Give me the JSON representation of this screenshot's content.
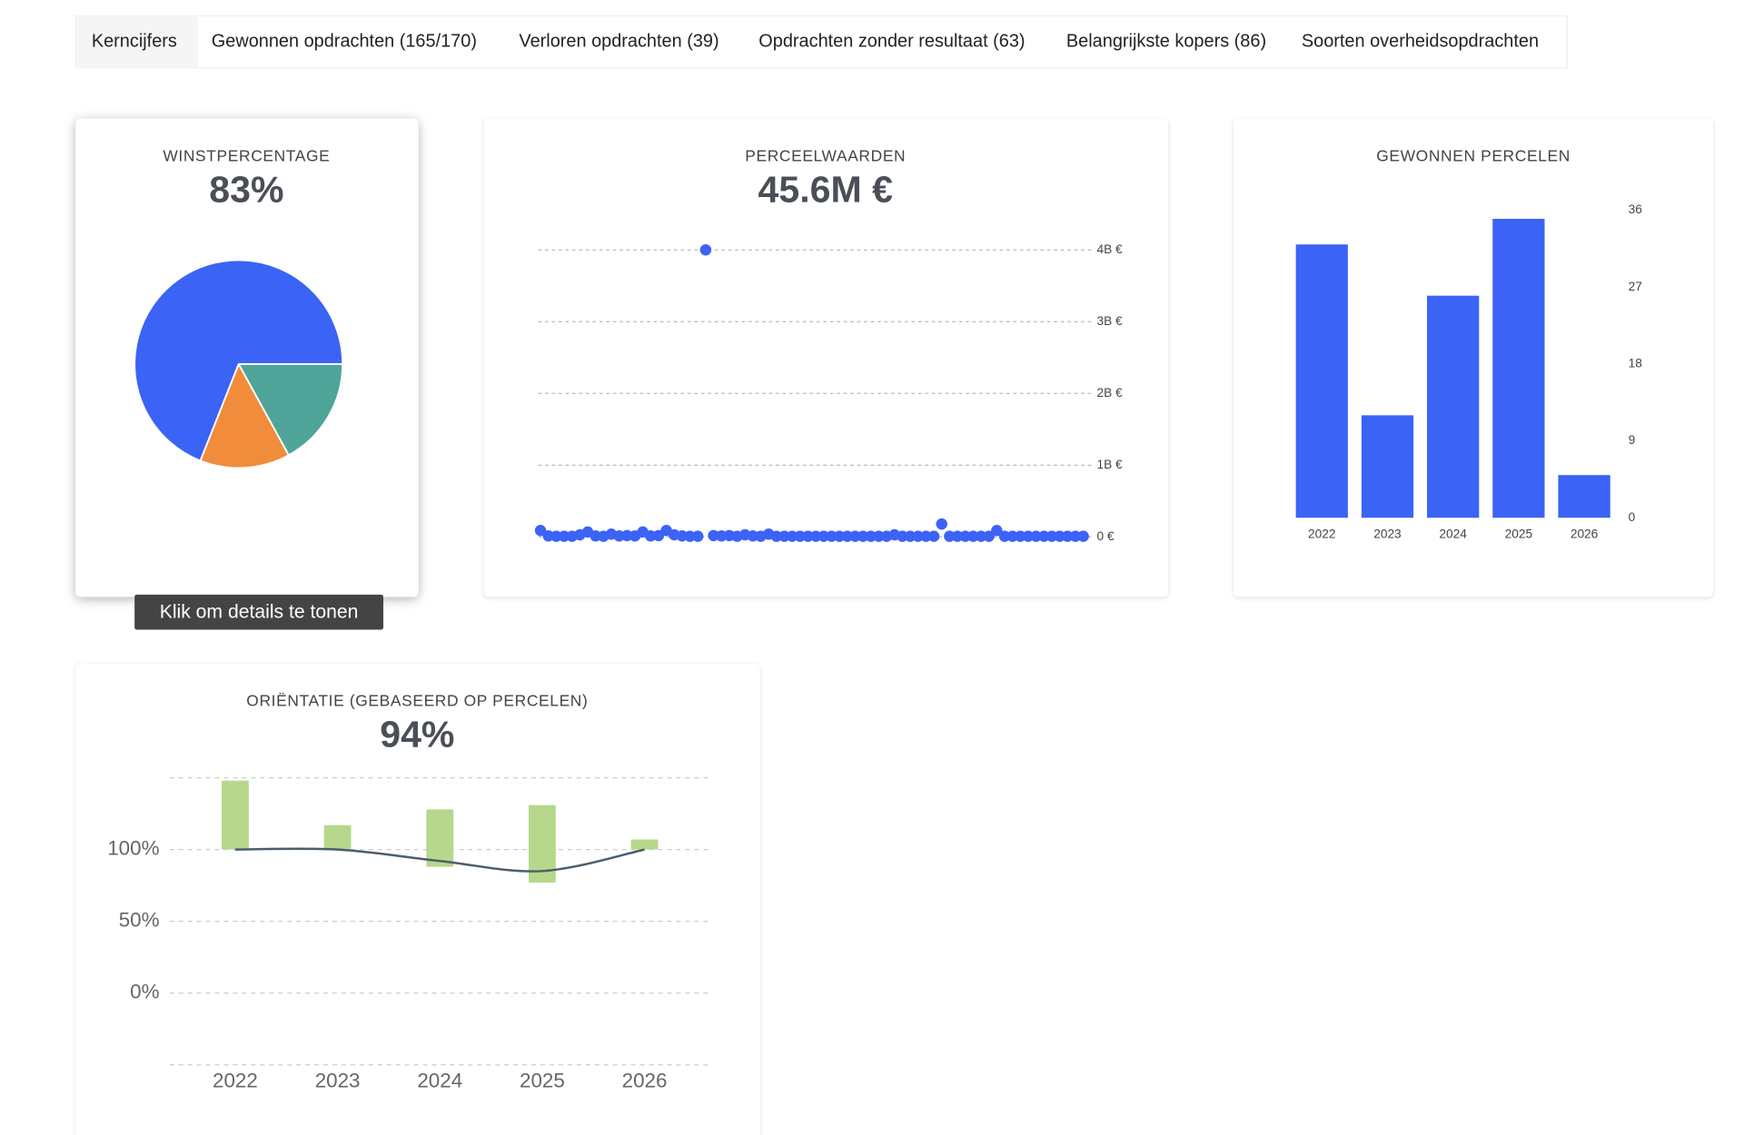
{
  "tabs": [
    "Kerncijfers",
    "Gewonnen opdrachten (165/170)",
    "Verloren opdrachten (39)",
    "Opdrachten zonder resultaat (63)",
    "Belangrijkste kopers (86)",
    "Soorten overheidsopdrachten"
  ],
  "tooltip": "Klik om details te tonen",
  "chart_data": [
    {
      "type": "pie",
      "title": "WINSTPERCENTAGE",
      "headline": "83%",
      "values": [
        17,
        14,
        69
      ],
      "colors": [
        "#4fa59a",
        "#f08c3c",
        "#3b63f5"
      ]
    },
    {
      "type": "scatter",
      "title": "PERCEELWAARDEN",
      "headline": "45.6M €",
      "color": "#3b63f5",
      "values": [
        90000000,
        15000000,
        10000000,
        10000000,
        10000000,
        30000000,
        70000000,
        15000000,
        10000000,
        40000000,
        15000000,
        20000000,
        15000000,
        70000000,
        15000000,
        20000000,
        90000000,
        30000000,
        15000000,
        10000000,
        10000000,
        4000000000,
        20000000,
        15000000,
        20000000,
        10000000,
        30000000,
        15000000,
        10000000,
        40000000,
        10000000,
        10000000,
        10000000,
        10000000,
        10000000,
        10000000,
        10000000,
        10000000,
        10000000,
        10000000,
        10000000,
        10000000,
        10000000,
        10000000,
        10000000,
        30000000,
        10000000,
        10000000,
        10000000,
        10000000,
        10000000,
        180000000,
        10000000,
        10000000,
        10000000,
        10000000,
        10000000,
        10000000,
        90000000,
        10000000,
        10000000,
        10000000,
        10000000,
        10000000,
        10000000,
        10000000,
        10000000,
        10000000,
        10000000,
        10000000
      ],
      "ylim": [
        0,
        4000000000
      ],
      "yticks": [
        {
          "value": 0,
          "label": "0 €"
        },
        {
          "value": 1000000000,
          "label": "1B €"
        },
        {
          "value": 2000000000,
          "label": "2B €"
        },
        {
          "value": 3000000000,
          "label": "3B €"
        },
        {
          "value": 4000000000,
          "label": "4B €"
        }
      ],
      "grid": true
    },
    {
      "type": "bar",
      "title": "GEWONNEN PERCELEN",
      "categories": [
        "2022",
        "2023",
        "2024",
        "2025",
        "2026"
      ],
      "values": [
        32,
        12,
        26,
        35,
        5
      ],
      "color": "#3b63f5",
      "ylim": [
        0,
        36
      ],
      "yticks": [
        0,
        9,
        18,
        27,
        36
      ]
    },
    {
      "type": "combo",
      "title": "ORIËNTATIE (GEBASEERD OP PERCELEN)",
      "headline": "94%",
      "categories": [
        "2022",
        "2023",
        "2024",
        "2025",
        "2026"
      ],
      "series": [
        {
          "type": "bar",
          "color": "#b7d88c",
          "low": [
            100,
            100,
            88,
            77,
            100
          ],
          "values": [
            148,
            117,
            128,
            131,
            107
          ]
        },
        {
          "type": "line",
          "color": "#4e5d6a",
          "values": [
            100,
            100,
            92,
            85,
            100
          ]
        }
      ],
      "ylim": [
        -50,
        150
      ],
      "yticks": [
        {
          "value": 0,
          "label": "0%"
        },
        {
          "value": 50,
          "label": "50%"
        },
        {
          "value": 100,
          "label": "100%"
        }
      ],
      "grid": true
    }
  ]
}
